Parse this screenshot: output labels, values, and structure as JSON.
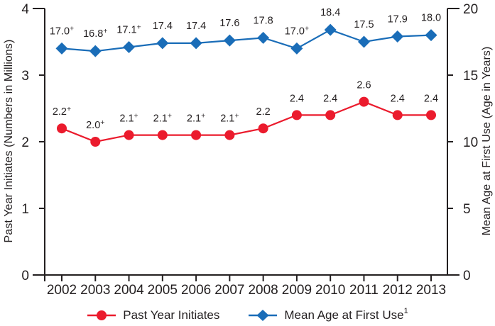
{
  "chart_data": {
    "type": "line",
    "title": "",
    "categories": [
      "2002",
      "2003",
      "2004",
      "2005",
      "2006",
      "2007",
      "2008",
      "2009",
      "2010",
      "2011",
      "2012",
      "2013"
    ],
    "series": [
      {
        "name": "Past Year Initiates",
        "footnote": "",
        "axis": "left",
        "marker": "circle",
        "color": "#EB1B2D",
        "values": [
          2.2,
          2.0,
          2.1,
          2.1,
          2.1,
          2.1,
          2.2,
          2.4,
          2.4,
          2.6,
          2.4,
          2.4
        ],
        "point_labels": [
          "2.2+",
          "2.0+",
          "2.1+",
          "2.1+",
          "2.1+",
          "2.1+",
          "2.2",
          "2.4",
          "2.4",
          "2.6",
          "2.4",
          "2.4"
        ]
      },
      {
        "name": "Mean Age at First Use",
        "footnote": "1",
        "axis": "right",
        "marker": "diamond",
        "color": "#1A6DB8",
        "values": [
          17.0,
          16.8,
          17.1,
          17.4,
          17.4,
          17.6,
          17.8,
          17.0,
          18.4,
          17.5,
          17.9,
          18.0
        ],
        "point_labels": [
          "17.0+",
          "16.8+",
          "17.1+",
          "17.4",
          "17.4",
          "17.6",
          "17.8",
          "17.0+",
          "18.4",
          "17.5",
          "17.9",
          "18.0"
        ]
      }
    ],
    "left_axis": {
      "label": "Past Year Initiates (Numbers in Millions)",
      "range": [
        0,
        4
      ],
      "ticks": [
        "0",
        "1",
        "2",
        "3",
        "4"
      ]
    },
    "right_axis": {
      "label": "Mean Age at First Use (Age in Years)",
      "range": [
        0,
        20
      ],
      "ticks": [
        "0",
        "5",
        "10",
        "15",
        "20"
      ]
    },
    "x_axis": {
      "label": ""
    },
    "grid": false,
    "legend_position": "bottom",
    "text_color": "#231F20"
  }
}
